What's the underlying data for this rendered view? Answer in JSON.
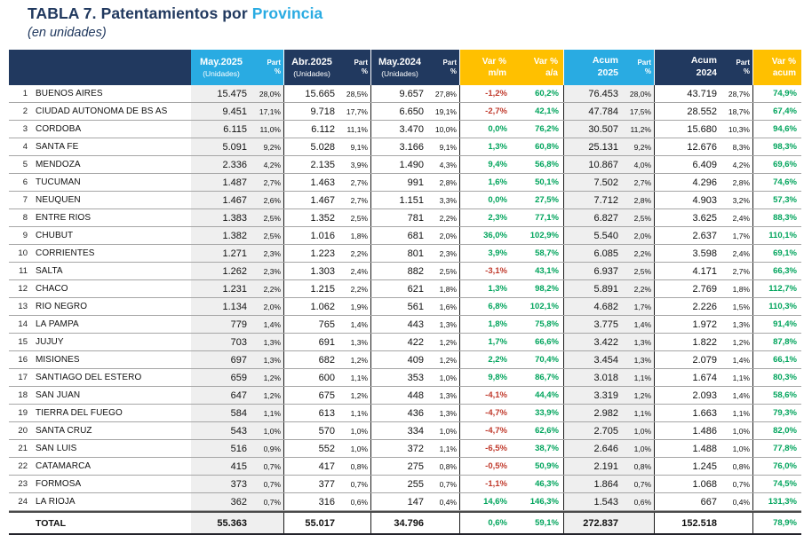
{
  "title": {
    "main": "TABLA 7. Patentamientos por ",
    "accent": "Provincia",
    "subtitle": "(en unidades)"
  },
  "colors": {
    "navy": "#21395F",
    "cyan": "#29ABE2",
    "gold": "#FFC000",
    "green": "#00A45C",
    "red": "#C0392B",
    "highlight_column_bg": "#EFEFEF"
  },
  "table": {
    "header": {
      "may2025": {
        "line1": "May.2025",
        "line2": "(Unidades)"
      },
      "abr2025": {
        "line1": "Abr.2025",
        "line2": "(Unidades)"
      },
      "may2024": {
        "line1": "May.2024",
        "line2": "(Unidades)"
      },
      "part": {
        "line1": "Part",
        "line2": "%"
      },
      "var_mm": {
        "line1": "Var %",
        "line2": "m/m"
      },
      "var_aa": {
        "line1": "Var %",
        "line2": "a/a"
      },
      "acum2025": {
        "line1": "Acum",
        "line2": "2025"
      },
      "acum2024": {
        "line1": "Acum",
        "line2": "2024"
      },
      "var_acum": {
        "line1": "Var %",
        "line2": "acum"
      }
    },
    "rows": [
      [
        "1",
        "BUENOS AIRES",
        "15.475",
        "28,0%",
        "15.665",
        "28,5%",
        "9.657",
        "27,8%",
        "-1,2%",
        "60,2%",
        "76.453",
        "28,0%",
        "43.719",
        "28,7%",
        "74,9%"
      ],
      [
        "2",
        "CIUDAD AUTONOMA DE BS AS",
        "9.451",
        "17,1%",
        "9.718",
        "17,7%",
        "6.650",
        "19,1%",
        "-2,7%",
        "42,1%",
        "47.784",
        "17,5%",
        "28.552",
        "18,7%",
        "67,4%"
      ],
      [
        "3",
        "CORDOBA",
        "6.115",
        "11,0%",
        "6.112",
        "11,1%",
        "3.470",
        "10,0%",
        "0,0%",
        "76,2%",
        "30.507",
        "11,2%",
        "15.680",
        "10,3%",
        "94,6%"
      ],
      [
        "4",
        "SANTA FE",
        "5.091",
        "9,2%",
        "5.028",
        "9,1%",
        "3.166",
        "9,1%",
        "1,3%",
        "60,8%",
        "25.131",
        "9,2%",
        "12.676",
        "8,3%",
        "98,3%"
      ],
      [
        "5",
        "MENDOZA",
        "2.336",
        "4,2%",
        "2.135",
        "3,9%",
        "1.490",
        "4,3%",
        "9,4%",
        "56,8%",
        "10.867",
        "4,0%",
        "6.409",
        "4,2%",
        "69,6%"
      ],
      [
        "6",
        "TUCUMAN",
        "1.487",
        "2,7%",
        "1.463",
        "2,7%",
        "991",
        "2,8%",
        "1,6%",
        "50,1%",
        "7.502",
        "2,7%",
        "4.296",
        "2,8%",
        "74,6%"
      ],
      [
        "7",
        "NEUQUEN",
        "1.467",
        "2,6%",
        "1.467",
        "2,7%",
        "1.151",
        "3,3%",
        "0,0%",
        "27,5%",
        "7.712",
        "2,8%",
        "4.903",
        "3,2%",
        "57,3%"
      ],
      [
        "8",
        "ENTRE RIOS",
        "1.383",
        "2,5%",
        "1.352",
        "2,5%",
        "781",
        "2,2%",
        "2,3%",
        "77,1%",
        "6.827",
        "2,5%",
        "3.625",
        "2,4%",
        "88,3%"
      ],
      [
        "9",
        "CHUBUT",
        "1.382",
        "2,5%",
        "1.016",
        "1,8%",
        "681",
        "2,0%",
        "36,0%",
        "102,9%",
        "5.540",
        "2,0%",
        "2.637",
        "1,7%",
        "110,1%"
      ],
      [
        "10",
        "CORRIENTES",
        "1.271",
        "2,3%",
        "1.223",
        "2,2%",
        "801",
        "2,3%",
        "3,9%",
        "58,7%",
        "6.085",
        "2,2%",
        "3.598",
        "2,4%",
        "69,1%"
      ],
      [
        "11",
        "SALTA",
        "1.262",
        "2,3%",
        "1.303",
        "2,4%",
        "882",
        "2,5%",
        "-3,1%",
        "43,1%",
        "6.937",
        "2,5%",
        "4.171",
        "2,7%",
        "66,3%"
      ],
      [
        "12",
        "CHACO",
        "1.231",
        "2,2%",
        "1.215",
        "2,2%",
        "621",
        "1,8%",
        "1,3%",
        "98,2%",
        "5.891",
        "2,2%",
        "2.769",
        "1,8%",
        "112,7%"
      ],
      [
        "13",
        "RIO NEGRO",
        "1.134",
        "2,0%",
        "1.062",
        "1,9%",
        "561",
        "1,6%",
        "6,8%",
        "102,1%",
        "4.682",
        "1,7%",
        "2.226",
        "1,5%",
        "110,3%"
      ],
      [
        "14",
        "LA PAMPA",
        "779",
        "1,4%",
        "765",
        "1,4%",
        "443",
        "1,3%",
        "1,8%",
        "75,8%",
        "3.775",
        "1,4%",
        "1.972",
        "1,3%",
        "91,4%"
      ],
      [
        "15",
        "JUJUY",
        "703",
        "1,3%",
        "691",
        "1,3%",
        "422",
        "1,2%",
        "1,7%",
        "66,6%",
        "3.422",
        "1,3%",
        "1.822",
        "1,2%",
        "87,8%"
      ],
      [
        "16",
        "MISIONES",
        "697",
        "1,3%",
        "682",
        "1,2%",
        "409",
        "1,2%",
        "2,2%",
        "70,4%",
        "3.454",
        "1,3%",
        "2.079",
        "1,4%",
        "66,1%"
      ],
      [
        "17",
        "SANTIAGO DEL ESTERO",
        "659",
        "1,2%",
        "600",
        "1,1%",
        "353",
        "1,0%",
        "9,8%",
        "86,7%",
        "3.018",
        "1,1%",
        "1.674",
        "1,1%",
        "80,3%"
      ],
      [
        "18",
        "SAN JUAN",
        "647",
        "1,2%",
        "675",
        "1,2%",
        "448",
        "1,3%",
        "-4,1%",
        "44,4%",
        "3.319",
        "1,2%",
        "2.093",
        "1,4%",
        "58,6%"
      ],
      [
        "19",
        "TIERRA DEL FUEGO",
        "584",
        "1,1%",
        "613",
        "1,1%",
        "436",
        "1,3%",
        "-4,7%",
        "33,9%",
        "2.982",
        "1,1%",
        "1.663",
        "1,1%",
        "79,3%"
      ],
      [
        "20",
        "SANTA CRUZ",
        "543",
        "1,0%",
        "570",
        "1,0%",
        "334",
        "1,0%",
        "-4,7%",
        "62,6%",
        "2.705",
        "1,0%",
        "1.486",
        "1,0%",
        "82,0%"
      ],
      [
        "21",
        "SAN LUIS",
        "516",
        "0,9%",
        "552",
        "1,0%",
        "372",
        "1,1%",
        "-6,5%",
        "38,7%",
        "2.646",
        "1,0%",
        "1.488",
        "1,0%",
        "77,8%"
      ],
      [
        "22",
        "CATAMARCA",
        "415",
        "0,7%",
        "417",
        "0,8%",
        "275",
        "0,8%",
        "-0,5%",
        "50,9%",
        "2.191",
        "0,8%",
        "1.245",
        "0,8%",
        "76,0%"
      ],
      [
        "23",
        "FORMOSA",
        "373",
        "0,7%",
        "377",
        "0,7%",
        "255",
        "0,7%",
        "-1,1%",
        "46,3%",
        "1.864",
        "0,7%",
        "1.068",
        "0,7%",
        "74,5%"
      ],
      [
        "24",
        "LA RIOJA",
        "362",
        "0,7%",
        "316",
        "0,6%",
        "147",
        "0,4%",
        "14,6%",
        "146,3%",
        "1.543",
        "0,6%",
        "667",
        "0,4%",
        "131,3%"
      ]
    ],
    "total": {
      "label": "TOTAL",
      "may2025": "55.363",
      "abr2025": "55.017",
      "may2024": "34.796",
      "var_mm": "0,6%",
      "var_aa": "59,1%",
      "acum2025": "272.837",
      "acum2024": "152.518",
      "var_acum": "78,9%"
    }
  }
}
